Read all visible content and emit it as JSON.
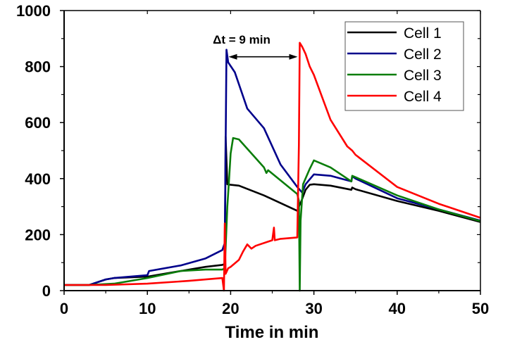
{
  "chart_data": {
    "type": "line",
    "title": "",
    "xlabel": "Time in min",
    "ylabel": "",
    "xlim": [
      0,
      50
    ],
    "ylim": [
      0,
      1000
    ],
    "xticks": [
      0,
      10,
      20,
      30,
      40,
      50
    ],
    "yticks": [
      0,
      200,
      400,
      600,
      800,
      1000
    ],
    "xtick_labels": [
      "0",
      "10",
      "20",
      "30",
      "40",
      "50"
    ],
    "ytick_labels": [
      "0",
      "200",
      "400",
      "600",
      "800",
      "1000"
    ],
    "grid": false,
    "legend_position": "top-right",
    "annotation": {
      "text": "Δt = 9 min",
      "from_x": 19.5,
      "to_x": 28.3,
      "y": 850
    },
    "series": [
      {
        "name": "Cell 1",
        "color": "#000000",
        "x": [
          0,
          3,
          5,
          6,
          10,
          14,
          17,
          19,
          19.3,
          19.4,
          19.6,
          20,
          21,
          24,
          28,
          28.2,
          28.5,
          29,
          29.5,
          30,
          32,
          34.5,
          34.6,
          35,
          40,
          45,
          50
        ],
        "y": [
          20,
          20,
          40,
          45,
          50,
          70,
          85,
          92,
          95,
          550,
          380,
          378,
          375,
          340,
          285,
          300,
          320,
          360,
          378,
          380,
          375,
          360,
          368,
          362,
          320,
          285,
          245
        ]
      },
      {
        "name": "Cell 2",
        "color": "#00008b",
        "x": [
          0,
          3,
          5,
          6,
          10,
          10.2,
          14,
          17,
          19,
          19.3,
          19.5,
          19.7,
          20.5,
          22,
          24,
          26,
          28,
          28.3,
          28.6,
          29,
          30,
          32,
          34.5,
          34.6,
          35,
          40,
          45,
          50
        ],
        "y": [
          20,
          20,
          40,
          45,
          55,
          70,
          90,
          115,
          145,
          170,
          860,
          815,
          780,
          650,
          580,
          450,
          370,
          360,
          350,
          380,
          415,
          410,
          390,
          408,
          400,
          330,
          290,
          250
        ]
      },
      {
        "name": "Cell 3",
        "color": "#0a7d0a",
        "x": [
          0,
          3,
          6,
          10,
          14,
          17,
          19,
          19.3,
          19.6,
          19.8,
          20,
          20.3,
          21,
          24,
          24.3,
          24.5,
          28,
          28.2,
          28.3,
          28.4,
          28.7,
          29.5,
          30,
          32,
          34.5,
          34.6,
          35,
          40,
          45,
          50
        ],
        "y": [
          20,
          20,
          25,
          45,
          70,
          75,
          75,
          80,
          300,
          390,
          490,
          545,
          540,
          440,
          420,
          430,
          345,
          320,
          0,
          250,
          380,
          435,
          465,
          440,
          390,
          410,
          405,
          340,
          290,
          248
        ]
      },
      {
        "name": "Cell 4",
        "color": "#ff0000",
        "x": [
          0,
          5,
          10,
          15,
          19,
          19.2,
          19.3,
          19.4,
          19.7,
          20,
          21,
          21.5,
          22,
          22.5,
          23,
          25,
          25.2,
          25.3,
          26,
          28,
          28.2,
          28.3,
          28.6,
          29,
          29.5,
          30,
          31,
          32,
          34,
          34.6,
          35,
          40,
          45,
          50
        ],
        "y": [
          20,
          20,
          25,
          35,
          45,
          0,
          240,
          60,
          80,
          85,
          110,
          140,
          165,
          150,
          160,
          180,
          225,
          180,
          185,
          190,
          520,
          885,
          870,
          845,
          800,
          770,
          690,
          610,
          515,
          500,
          485,
          370,
          310,
          260
        ]
      }
    ]
  }
}
